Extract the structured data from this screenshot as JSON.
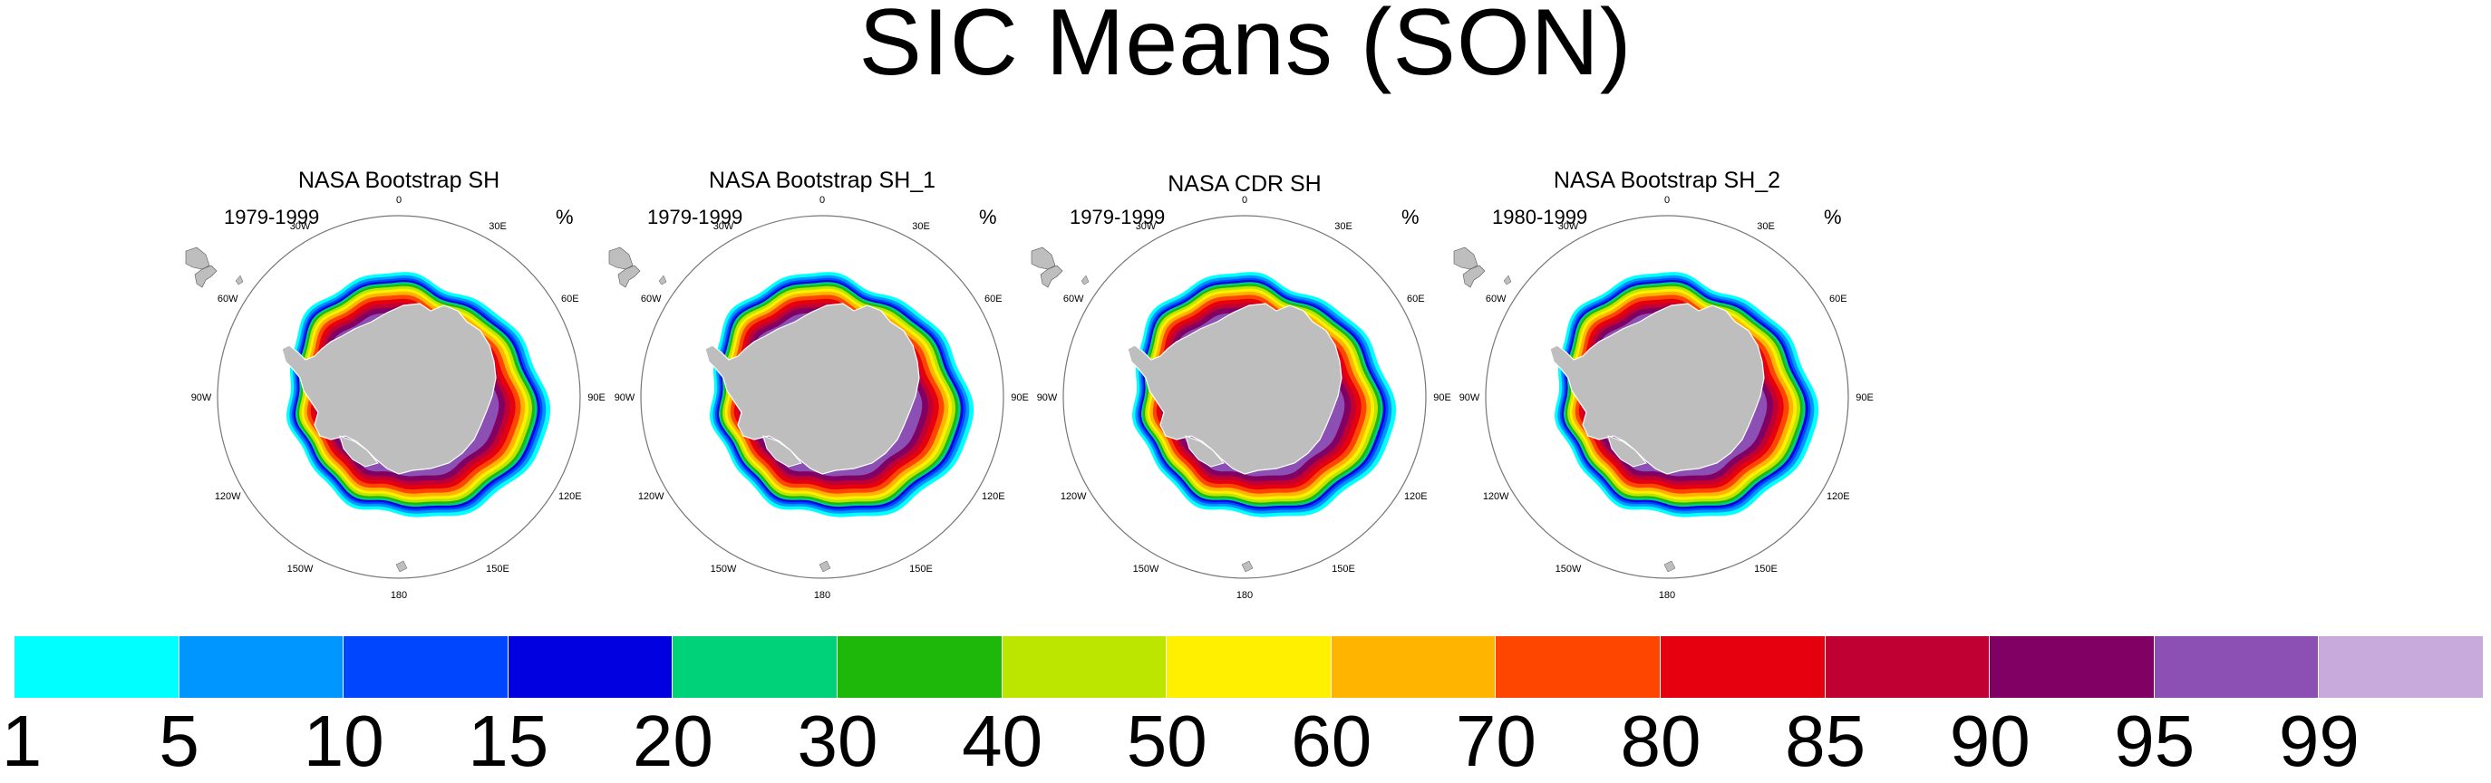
{
  "title": "SIC Means (SON)",
  "panels": [
    {
      "title": "NASA Bootstrap SH",
      "period": "1979-1999",
      "units": "%"
    },
    {
      "title": "NASA Bootstrap SH_1",
      "period": "1979-1999",
      "units": "%"
    },
    {
      "title": "NASA CDR SH",
      "period": "1979-1999",
      "units": "%"
    },
    {
      "title": "NASA Bootstrap SH_2",
      "period": "1980-1999",
      "units": "%"
    }
  ],
  "longitude_labels": [
    "0",
    "30E",
    "60E",
    "90E",
    "120E",
    "150E",
    "180",
    "150W",
    "120W",
    "90W",
    "60W",
    "30W"
  ],
  "colorbar": {
    "labels": [
      "1",
      "5",
      "10",
      "15",
      "20",
      "30",
      "40",
      "50",
      "60",
      "70",
      "80",
      "85",
      "90",
      "95",
      "99"
    ],
    "colors": [
      "#00ffff",
      "#0096ff",
      "#0046ff",
      "#0000e0",
      "#00d27a",
      "#1eb80a",
      "#bce600",
      "#fff000",
      "#ffb400",
      "#ff4600",
      "#e6000f",
      "#c00032",
      "#800064",
      "#8c50b4",
      "#c8aadc"
    ]
  },
  "map_colors": {
    "land": "#bebebe",
    "ocean": "#ffffff",
    "outline": "#555555"
  }
}
